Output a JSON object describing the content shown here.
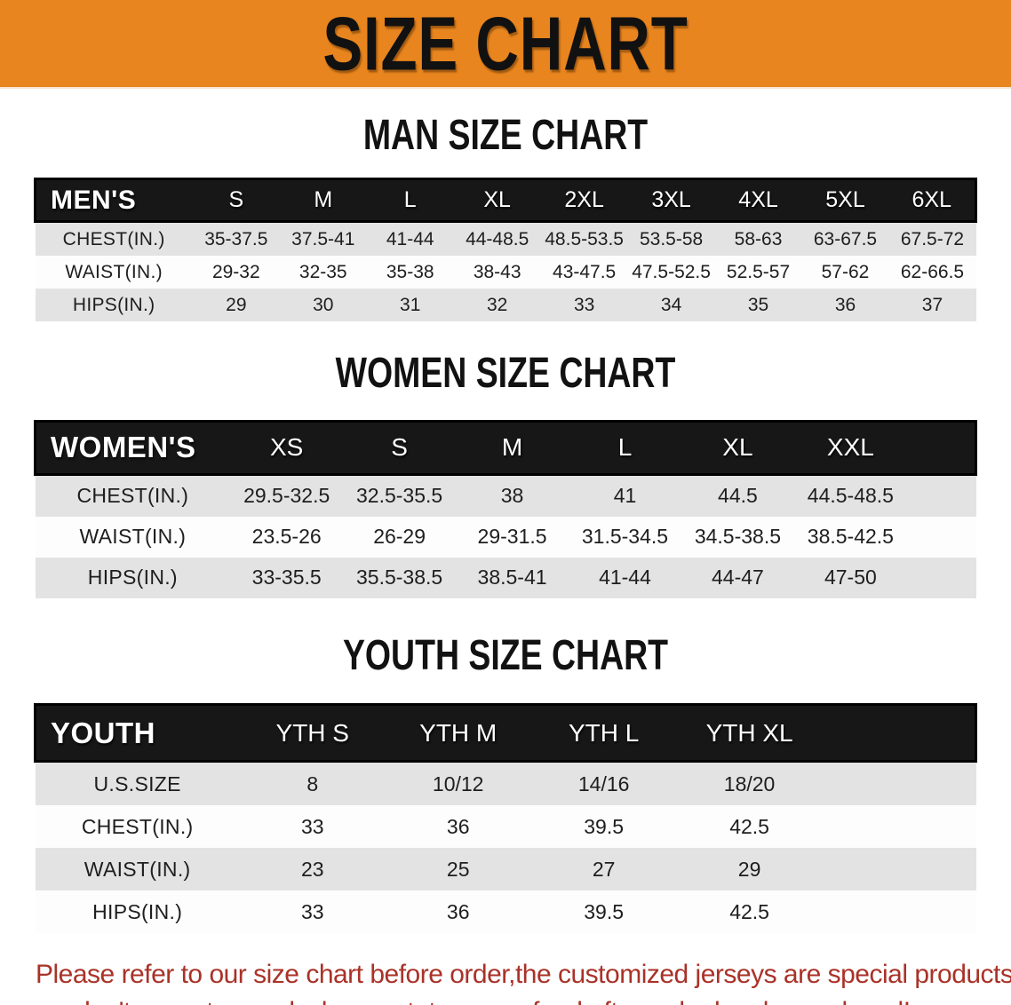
{
  "banner": {
    "title": "SIZE CHART",
    "bg_color": "#E8851E"
  },
  "sections": [
    {
      "heading": "MAN SIZE CHART",
      "table": {
        "label": "MEN'S",
        "columns": [
          "S",
          "M",
          "L",
          "XL",
          "2XL",
          "3XL",
          "4XL",
          "5XL",
          "6XL"
        ],
        "rows": [
          {
            "label": "CHEST(IN.)",
            "values": [
              "35-37.5",
              "37.5-41",
              "41-44",
              "44-48.5",
              "48.5-53.5",
              "53.5-58",
              "58-63",
              "63-67.5",
              "67.5-72"
            ]
          },
          {
            "label": "WAIST(IN.)",
            "values": [
              "29-32",
              "32-35",
              "35-38",
              "38-43",
              "43-47.5",
              "47.5-52.5",
              "52.5-57",
              "57-62",
              "62-66.5"
            ]
          },
          {
            "label": "HIPS(IN.)",
            "values": [
              "29",
              "30",
              "31",
              "32",
              "33",
              "34",
              "35",
              "36",
              "37"
            ]
          }
        ]
      }
    },
    {
      "heading": "WOMEN SIZE CHART",
      "table": {
        "label": "WOMEN'S",
        "columns": [
          "XS",
          "S",
          "M",
          "L",
          "XL",
          "XXL"
        ],
        "rows": [
          {
            "label": "CHEST(IN.)",
            "values": [
              "29.5-32.5",
              "32.5-35.5",
              "38",
              "41",
              "44.5",
              "44.5-48.5"
            ]
          },
          {
            "label": "WAIST(IN.)",
            "values": [
              "23.5-26",
              "26-29",
              "29-31.5",
              "31.5-34.5",
              "34.5-38.5",
              "38.5-42.5"
            ]
          },
          {
            "label": "HIPS(IN.)",
            "values": [
              "33-35.5",
              "35.5-38.5",
              "38.5-41",
              "41-44",
              "44-47",
              "47-50"
            ]
          }
        ]
      }
    },
    {
      "heading": "YOUTH SIZE CHART",
      "table": {
        "label": "YOUTH",
        "columns": [
          "YTH S",
          "YTH M",
          "YTH L",
          "YTH XL"
        ],
        "rows": [
          {
            "label": "U.S.SIZE",
            "values": [
              "8",
              "10/12",
              "14/16",
              "18/20"
            ]
          },
          {
            "label": "CHEST(IN.)",
            "values": [
              "33",
              "36",
              "39.5",
              "42.5"
            ]
          },
          {
            "label": "WAIST(IN.)",
            "values": [
              "23",
              "25",
              "27",
              "29"
            ]
          },
          {
            "label": "HIPS(IN.)",
            "values": [
              "33",
              "36",
              "39.5",
              "42.5"
            ]
          }
        ]
      }
    }
  ],
  "disclaimer": {
    "line1": "Please refer to our size chart before order,the customized jerseys are special products,",
    "line2": "we don't accept cancel, change, teturn or refund after order has been placed!",
    "color": "#A93228"
  }
}
